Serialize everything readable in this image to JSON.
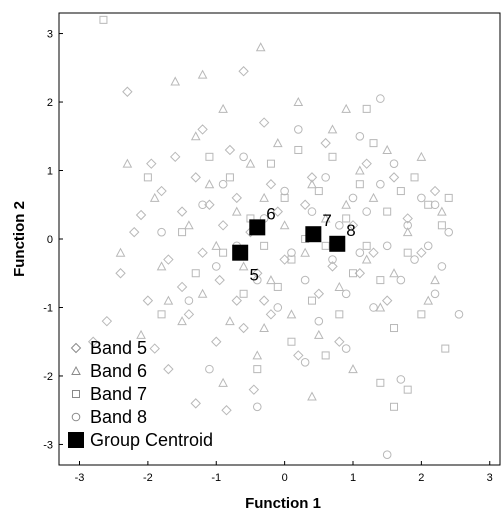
{
  "chart_data": {
    "type": "scatter",
    "title": "",
    "xlabel": "Function 1",
    "ylabel": "Function 2",
    "xlim": [
      -3.3,
      3.15
    ],
    "ylim": [
      -3.3,
      3.3
    ],
    "xticks": [
      -3,
      -2,
      -1,
      0,
      1,
      2,
      3
    ],
    "yticks": [
      -3,
      -2,
      -1,
      0,
      1,
      2,
      3
    ],
    "grid": false,
    "legend_position": "bottom-left",
    "legend": [
      {
        "label": "Band 5",
        "marker": "diamond"
      },
      {
        "label": "Band 6",
        "marker": "triangle"
      },
      {
        "label": "Band 7",
        "marker": "square"
      },
      {
        "label": "Band 8",
        "marker": "circle"
      },
      {
        "label": "Group Centroid",
        "marker": "filled-square"
      }
    ],
    "point_color": "#b8b8b8",
    "centroid_color": "#000000",
    "centroids": [
      {
        "label": "5",
        "x": -0.65,
        "y": -0.2,
        "label_pos": "below"
      },
      {
        "label": "6",
        "x": -0.4,
        "y": 0.17,
        "label_pos": "upper-right"
      },
      {
        "label": "7",
        "x": 0.42,
        "y": 0.07,
        "label_pos": "upper-right"
      },
      {
        "label": "8",
        "x": 0.77,
        "y": -0.07,
        "label_pos": "upper-right"
      }
    ],
    "series": [
      {
        "name": "Band 5",
        "marker": "diamond",
        "points": [
          [
            -2.8,
            -1.5
          ],
          [
            -2.4,
            -0.5
          ],
          [
            -2.3,
            2.15
          ],
          [
            -2.1,
            0.35
          ],
          [
            -2,
            -0.9
          ],
          [
            -1.95,
            1.1
          ],
          [
            -1.9,
            -1.6
          ],
          [
            -1.8,
            0.7
          ],
          [
            -1.7,
            -0.3
          ],
          [
            -1.6,
            1.2
          ],
          [
            -1.5,
            -0.7
          ],
          [
            -1.5,
            0.4
          ],
          [
            -1.4,
            -1.1
          ],
          [
            -1.3,
            0.9
          ],
          [
            -1.2,
            -0.2
          ],
          [
            -1.2,
            1.6
          ],
          [
            -1.1,
            0.5
          ],
          [
            -1,
            -1.5
          ],
          [
            -0.95,
            -0.6
          ],
          [
            -0.9,
            0.2
          ],
          [
            -0.85,
            -2.5
          ],
          [
            -0.8,
            1.3
          ],
          [
            -0.7,
            -0.9
          ],
          [
            -0.7,
            0.6
          ],
          [
            -0.6,
            -1.3
          ],
          [
            -0.6,
            2.45
          ],
          [
            -0.5,
            0.1
          ],
          [
            -0.45,
            -2.2
          ],
          [
            -0.4,
            -0.5
          ],
          [
            -0.3,
            1.7
          ],
          [
            -0.2,
            -1.1
          ],
          [
            -0.1,
            0.4
          ],
          [
            0,
            -0.3
          ],
          [
            0.2,
            -1.7
          ],
          [
            0.4,
            0.9
          ],
          [
            0.5,
            -0.8
          ],
          [
            0.6,
            1.4
          ],
          [
            0.8,
            -1.5
          ],
          [
            1,
            0.2
          ],
          [
            1.1,
            -0.5
          ],
          [
            1.2,
            1.1
          ],
          [
            1.5,
            -0.9
          ],
          [
            1.8,
            0.3
          ],
          [
            2,
            -0.2
          ],
          [
            2.2,
            0.7
          ],
          [
            -2.6,
            -1.2
          ],
          [
            -1.7,
            -1.9
          ],
          [
            -0.3,
            -0.9
          ],
          [
            0.3,
            0.5
          ],
          [
            1.3,
            -0.2
          ],
          [
            -1.3,
            -2.4
          ],
          [
            -0.2,
            0.8
          ],
          [
            0.7,
            -0.4
          ],
          [
            1.6,
            0.9
          ],
          [
            -2.2,
            0.1
          ]
        ]
      },
      {
        "name": "Band 6",
        "marker": "triangle",
        "points": [
          [
            -2.3,
            1.1
          ],
          [
            -2.1,
            -1.4
          ],
          [
            -1.9,
            0.6
          ],
          [
            -1.8,
            -0.4
          ],
          [
            -1.6,
            2.3
          ],
          [
            -1.5,
            -1.2
          ],
          [
            -1.4,
            0.2
          ],
          [
            -1.3,
            1.5
          ],
          [
            -1.2,
            -0.8
          ],
          [
            -1.1,
            0.8
          ],
          [
            -1,
            -0.1
          ],
          [
            -0.9,
            1.9
          ],
          [
            -0.8,
            -1.2
          ],
          [
            -0.7,
            0.4
          ],
          [
            -0.6,
            -0.4
          ],
          [
            -0.5,
            1.1
          ],
          [
            -0.4,
            -1.7
          ],
          [
            -0.35,
            2.8
          ],
          [
            -0.3,
            0.6
          ],
          [
            -0.2,
            -0.6
          ],
          [
            -0.1,
            1.4
          ],
          [
            0,
            0.2
          ],
          [
            0.1,
            -1.1
          ],
          [
            0.2,
            2
          ],
          [
            0.3,
            -0.2
          ],
          [
            0.4,
            0.8
          ],
          [
            0.5,
            -1.4
          ],
          [
            0.6,
            0.3
          ],
          [
            0.7,
            1.6
          ],
          [
            0.8,
            -0.7
          ],
          [
            0.9,
            0.5
          ],
          [
            1,
            -1.9
          ],
          [
            1.1,
            1
          ],
          [
            1.2,
            -0.3
          ],
          [
            1.3,
            0.6
          ],
          [
            1.5,
            1.3
          ],
          [
            1.6,
            -0.5
          ],
          [
            1.8,
            0.1
          ],
          [
            2,
            1.2
          ],
          [
            2.2,
            -0.6
          ],
          [
            2.3,
            0.4
          ],
          [
            -1.7,
            -0.9
          ],
          [
            -0.9,
            -2.1
          ],
          [
            0.4,
            -2.3
          ],
          [
            1.4,
            -1
          ],
          [
            -2.4,
            -0.2
          ],
          [
            -1.2,
            2.4
          ],
          [
            0.9,
            1.9
          ],
          [
            2.1,
            -0.9
          ],
          [
            -0.3,
            -1.3
          ]
        ]
      },
      {
        "name": "Band 7",
        "marker": "square",
        "points": [
          [
            -2.65,
            3.2
          ],
          [
            -2,
            0.9
          ],
          [
            -1.8,
            -1.1
          ],
          [
            -1.5,
            0.1
          ],
          [
            -1.3,
            -0.5
          ],
          [
            -1.1,
            1.2
          ],
          [
            -0.9,
            -0.2
          ],
          [
            -0.8,
            0.9
          ],
          [
            -0.6,
            -0.8
          ],
          [
            -0.5,
            0.3
          ],
          [
            -0.3,
            -0.1
          ],
          [
            -0.2,
            1.1
          ],
          [
            -0.1,
            -0.7
          ],
          [
            0,
            0.6
          ],
          [
            0.1,
            -0.3
          ],
          [
            0.2,
            1.3
          ],
          [
            0.3,
            0
          ],
          [
            0.4,
            -0.9
          ],
          [
            0.5,
            0.7
          ],
          [
            0.6,
            -0.1
          ],
          [
            0.7,
            1.2
          ],
          [
            0.8,
            -1.1
          ],
          [
            0.9,
            0.3
          ],
          [
            1,
            -0.5
          ],
          [
            1.1,
            0.8
          ],
          [
            1.2,
            -0.1
          ],
          [
            1.3,
            1.4
          ],
          [
            1.4,
            -0.6
          ],
          [
            1.5,
            0.4
          ],
          [
            1.6,
            -1.3
          ],
          [
            1.7,
            0.7
          ],
          [
            1.8,
            -0.2
          ],
          [
            1.9,
            0.9
          ],
          [
            2,
            -1.1
          ],
          [
            2.1,
            0.5
          ],
          [
            2.3,
            0.2
          ],
          [
            1.4,
            -2.1
          ],
          [
            1.8,
            -2.2
          ],
          [
            1.6,
            -2.45
          ],
          [
            2.35,
            -1.6
          ],
          [
            -0.4,
            -1.9
          ],
          [
            0.6,
            -1.7
          ],
          [
            1.2,
            1.9
          ],
          [
            2.4,
            0.6
          ],
          [
            0.1,
            -1.5
          ]
        ]
      },
      {
        "name": "Band 8",
        "marker": "circle",
        "points": [
          [
            -1.8,
            0.1
          ],
          [
            -1.4,
            -0.9
          ],
          [
            -1.2,
            0.5
          ],
          [
            -1,
            -0.4
          ],
          [
            -0.9,
            0.8
          ],
          [
            -0.7,
            -0.1
          ],
          [
            -0.6,
            1.2
          ],
          [
            -0.4,
            -0.6
          ],
          [
            -0.3,
            0.3
          ],
          [
            -0.1,
            -1
          ],
          [
            0,
            0.7
          ],
          [
            0.1,
            -0.2
          ],
          [
            0.2,
            1.6
          ],
          [
            0.3,
            -0.6
          ],
          [
            0.4,
            0.4
          ],
          [
            0.5,
            -1.2
          ],
          [
            0.6,
            0.9
          ],
          [
            0.7,
            -0.3
          ],
          [
            0.8,
            0.2
          ],
          [
            0.9,
            -0.8
          ],
          [
            1,
            0.6
          ],
          [
            1.1,
            -0.2
          ],
          [
            1.2,
            0.4
          ],
          [
            1.3,
            -1
          ],
          [
            1.4,
            0.8
          ],
          [
            1.5,
            -0.1
          ],
          [
            1.6,
            1.1
          ],
          [
            1.7,
            -0.6
          ],
          [
            1.8,
            0.2
          ],
          [
            1.9,
            -0.3
          ],
          [
            2,
            0.6
          ],
          [
            2.1,
            -0.1
          ],
          [
            2.2,
            0.5
          ],
          [
            2.3,
            -0.4
          ],
          [
            2.4,
            0.1
          ],
          [
            2.55,
            -1.1
          ],
          [
            1.4,
            2.05
          ],
          [
            1.7,
            -2.05
          ],
          [
            -0.4,
            -2.45
          ],
          [
            1.5,
            -3.15
          ],
          [
            -1.1,
            -1.9
          ],
          [
            0.9,
            -1.6
          ],
          [
            1.1,
            1.5
          ],
          [
            2.2,
            -0.8
          ],
          [
            0.3,
            -1.8
          ]
        ]
      }
    ]
  }
}
